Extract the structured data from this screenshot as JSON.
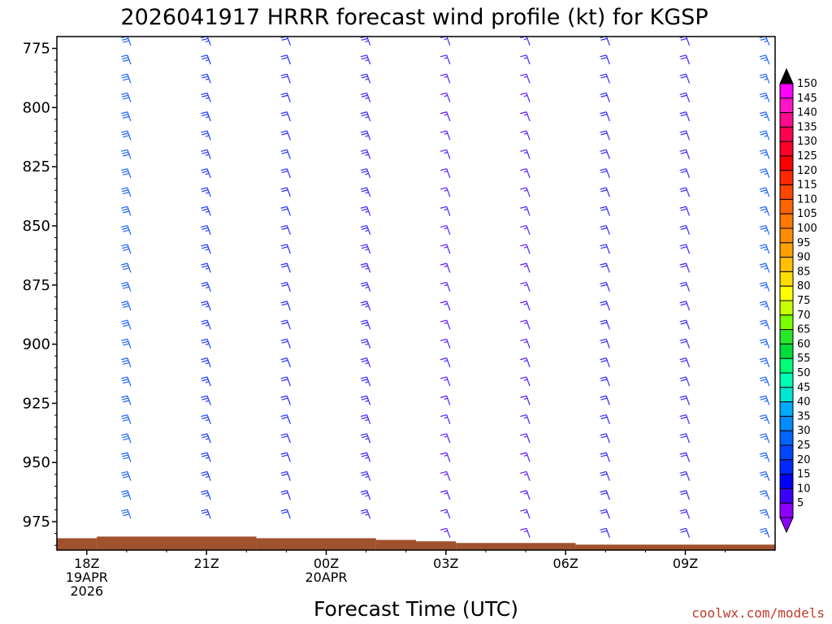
{
  "chart_data": {
    "type": "wind-barb-profile",
    "title": "2026041917 HRRR forecast wind profile (kt) for KGSP",
    "xlabel": "Forecast Time (UTC)",
    "ylabel": "",
    "y_ticks": [
      "775",
      "800",
      "825",
      "850",
      "875",
      "900",
      "925",
      "950",
      "975"
    ],
    "y_range_hpa": [
      770,
      987
    ],
    "x_range_hours": [
      -0.75,
      17.25
    ],
    "x_ticks": [
      {
        "hour": 0,
        "lines": [
          "18Z",
          "19APR",
          "2026"
        ]
      },
      {
        "hour": 3,
        "lines": [
          "21Z"
        ]
      },
      {
        "hour": 6,
        "lines": [
          "00Z",
          "20APR"
        ]
      },
      {
        "hour": 9,
        "lines": [
          "03Z"
        ]
      },
      {
        "hour": 12,
        "lines": [
          "06Z"
        ]
      },
      {
        "hour": 15,
        "lines": [
          "09Z"
        ]
      }
    ],
    "colorbar": {
      "labels": [
        "150",
        "145",
        "140",
        "135",
        "130",
        "125",
        "120",
        "115",
        "110",
        "105",
        "100",
        "95",
        "90",
        "85",
        "80",
        "75",
        "70",
        "65",
        "60",
        "55",
        "50",
        "45",
        "40",
        "35",
        "30",
        "25",
        "20",
        "15",
        "10",
        "5"
      ],
      "colors": [
        "#ff00ff",
        "#ff14c8",
        "#ff0a8c",
        "#ff0050",
        "#ff0028",
        "#ff0000",
        "#ff2800",
        "#ff4600",
        "#ff6400",
        "#ff7800",
        "#ff8c00",
        "#ffa000",
        "#ffbe00",
        "#ffdc00",
        "#ffff00",
        "#c8ff00",
        "#78ff00",
        "#28e628",
        "#00dc3c",
        "#00ff78",
        "#00ffb4",
        "#00e6d2",
        "#00aaff",
        "#008cff",
        "#0064ff",
        "#0046ff",
        "#0028ff",
        "#0000ff",
        "#3c00ff",
        "#8c00ff"
      ],
      "top_arrow_color": "#000000",
      "bottom_arrow_color": "#8c00ff"
    },
    "barb_columns": [
      {
        "hour": 1,
        "top_hpa": 772,
        "bottom_hpa": 978,
        "speed_kt": 30,
        "color": "#1e64ff"
      },
      {
        "hour": 3,
        "top_hpa": 772,
        "bottom_hpa": 978,
        "speed_kt": 25,
        "color": "#1e3cff"
      },
      {
        "hour": 5,
        "top_hpa": 772,
        "bottom_hpa": 978,
        "speed_kt": 20,
        "color": "#2830ff"
      },
      {
        "hour": 7,
        "top_hpa": 772,
        "bottom_hpa": 978,
        "speed_kt": 25,
        "color": "#3c28ff"
      },
      {
        "hour": 9,
        "top_hpa": 772,
        "bottom_hpa": 983,
        "speed_kt": 15,
        "color": "#5a1eff"
      },
      {
        "hour": 11,
        "top_hpa": 772,
        "bottom_hpa": 983,
        "speed_kt": 15,
        "color": "#5a1eff"
      },
      {
        "hour": 13,
        "top_hpa": 772,
        "bottom_hpa": 983,
        "speed_kt": 20,
        "color": "#3228ff"
      },
      {
        "hour": 15,
        "top_hpa": 772,
        "bottom_hpa": 983,
        "speed_kt": 20,
        "color": "#3c28ff"
      },
      {
        "hour": 17,
        "top_hpa": 772,
        "bottom_hpa": 985,
        "speed_kt": 25,
        "color": "#1e64ff"
      }
    ],
    "terrain": {
      "color": "#a0522d",
      "steps": [
        {
          "from_hour": -0.75,
          "to_hour": 0.25,
          "pressure_hpa": 982.0
        },
        {
          "from_hour": 0.25,
          "to_hour": 4.25,
          "pressure_hpa": 981.3
        },
        {
          "from_hour": 4.25,
          "to_hour": 7.25,
          "pressure_hpa": 982.0
        },
        {
          "from_hour": 7.25,
          "to_hour": 8.25,
          "pressure_hpa": 982.7
        },
        {
          "from_hour": 8.25,
          "to_hour": 9.25,
          "pressure_hpa": 983.3
        },
        {
          "from_hour": 9.25,
          "to_hour": 12.25,
          "pressure_hpa": 984.0
        },
        {
          "from_hour": 12.25,
          "to_hour": 17.25,
          "pressure_hpa": 984.7
        }
      ]
    }
  },
  "credit": "coolwx.com/models"
}
